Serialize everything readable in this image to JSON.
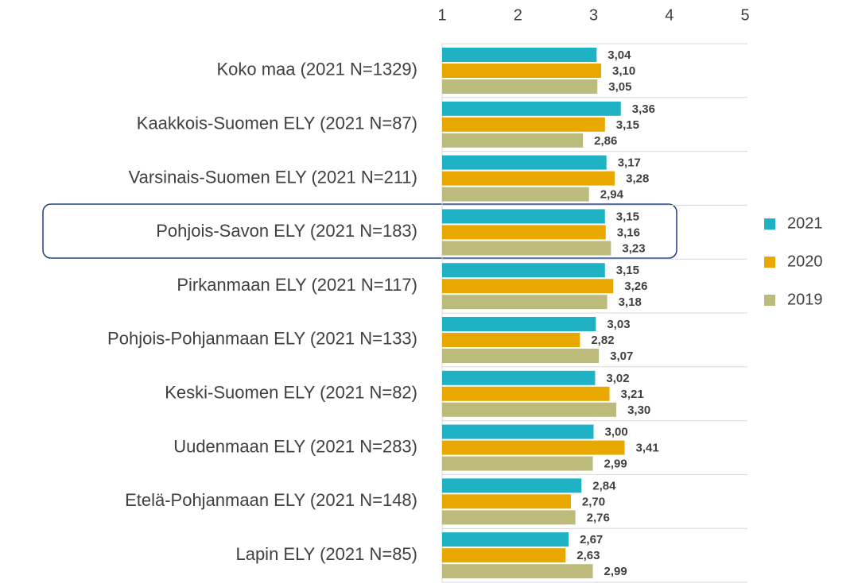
{
  "chart_data": {
    "type": "bar",
    "orientation": "horizontal",
    "categories": [
      "Koko maa (2021 N=1329)",
      "Kaakkois-Suomen ELY (2021 N=87)",
      "Varsinais-Suomen ELY (2021 N=211)",
      "Pohjois-Savon ELY (2021 N=183)",
      "Pirkanmaan ELY (2021 N=117)",
      "Pohjois-Pohjanmaan ELY (2021 N=133)",
      "Keski-Suomen ELY (2021 N=82)",
      "Uudenmaan ELY (2021 N=283)",
      "Etelä-Pohjanmaan ELY (2021 N=148)",
      "Lapin ELY (2021 N=85)"
    ],
    "series": [
      {
        "name": "2021",
        "color": "#1fb1c4",
        "values": [
          3.04,
          3.36,
          3.17,
          3.15,
          3.15,
          3.03,
          3.02,
          3.0,
          2.84,
          2.67
        ],
        "value_labels": [
          "3,04",
          "3,36",
          "3,17",
          "3,15",
          "3,15",
          "3,03",
          "3,02",
          "3,00",
          "2,84",
          "2,67"
        ]
      },
      {
        "name": "2020",
        "color": "#e9a800",
        "values": [
          3.1,
          3.15,
          3.28,
          3.16,
          3.26,
          2.82,
          3.21,
          3.41,
          2.7,
          2.63
        ],
        "value_labels": [
          "3,10",
          "3,15",
          "3,28",
          "3,16",
          "3,26",
          "2,82",
          "3,21",
          "3,41",
          "2,70",
          "2,63"
        ]
      },
      {
        "name": "2019",
        "color": "#bdbb7c",
        "values": [
          3.05,
          2.86,
          2.94,
          3.23,
          3.18,
          3.07,
          3.3,
          2.99,
          2.76,
          2.99
        ],
        "value_labels": [
          "3,05",
          "2,86",
          "2,94",
          "3,23",
          "3,18",
          "3,07",
          "3,30",
          "2,99",
          "2,76",
          "2,99"
        ]
      }
    ],
    "xlim": [
      1,
      5
    ],
    "xticks": [
      1,
      2,
      3,
      4,
      5
    ],
    "grid": false,
    "legend": "right"
  }
}
